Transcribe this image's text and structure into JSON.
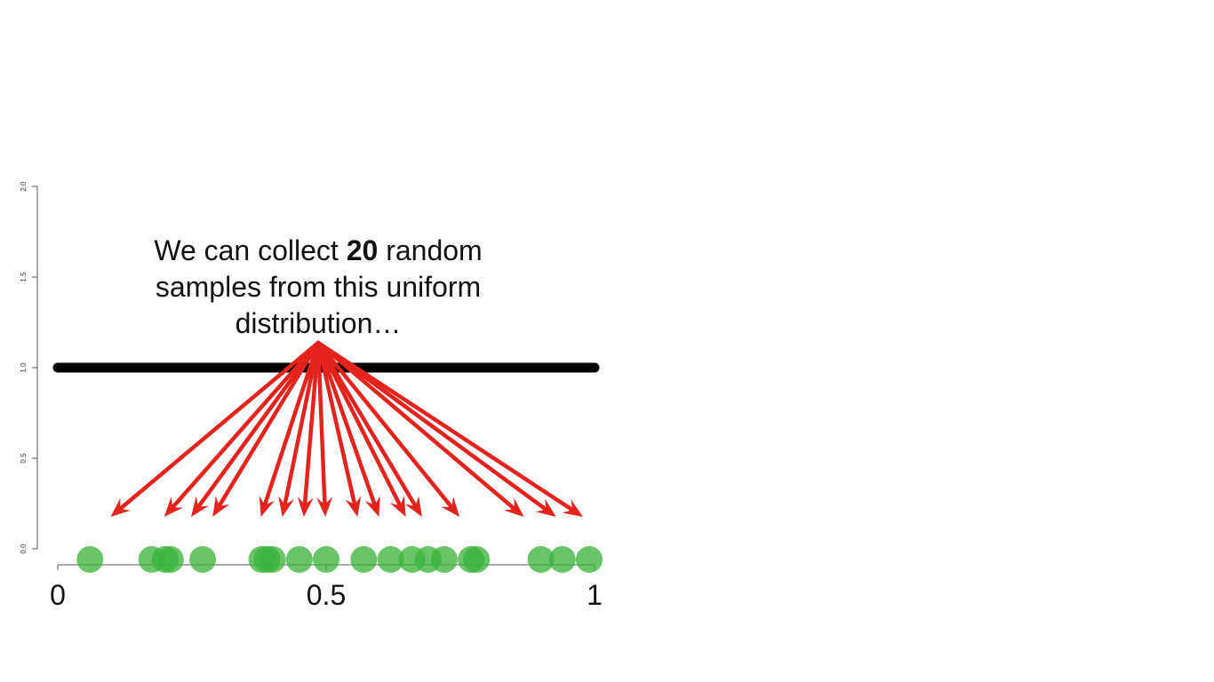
{
  "annotation": {
    "before": "We can collect ",
    "number": "20",
    "after": " random samples from this uniform distribution…"
  },
  "chart_data": {
    "type": "scatter",
    "distribution": {
      "name": "uniform",
      "x": [
        0,
        1
      ],
      "density": 1.0,
      "color": "#000000"
    },
    "y_ticks": [
      "0.0",
      "0.5",
      "1.0",
      "1.5",
      "2.0"
    ],
    "x_ticks": [
      "0",
      "0.5",
      "1"
    ],
    "ylim": [
      0,
      2
    ],
    "xlim": [
      0,
      1
    ],
    "samples": [
      0.06,
      0.175,
      0.2,
      0.21,
      0.27,
      0.38,
      0.39,
      0.4,
      0.45,
      0.5,
      0.57,
      0.62,
      0.66,
      0.69,
      0.72,
      0.77,
      0.78,
      0.9,
      0.94,
      0.99
    ],
    "point_color": "#3cb43c",
    "arrow_color": "#e3231c",
    "arrow_targets": [
      0.1,
      0.2,
      0.25,
      0.29,
      0.38,
      0.42,
      0.46,
      0.5,
      0.56,
      0.6,
      0.65,
      0.68,
      0.75,
      0.87,
      0.93,
      0.98
    ]
  }
}
